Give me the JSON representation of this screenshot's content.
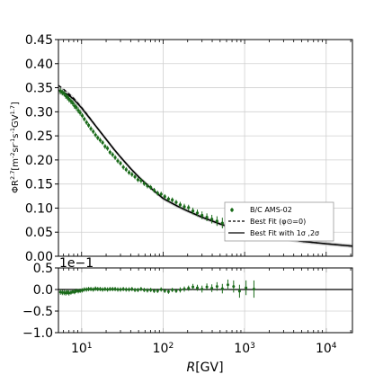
{
  "chart_data": [
    {
      "type": "scatter",
      "panel": "main",
      "ylabel": "ΦR^{2.7}[m^{-2}sr^{-1}s^{-1}GV^{1.7}]",
      "xscale": "log",
      "xlim": [
        5.2,
        21000
      ],
      "ylim": [
        0.0,
        0.45
      ],
      "yticks": [
        "0.00",
        "0.05",
        "0.10",
        "0.15",
        "0.20",
        "0.25",
        "0.30",
        "0.35",
        "0.40",
        "0.45"
      ],
      "grid": true,
      "legend_position": "lower-right",
      "series": [
        {
          "name": "B/C AMS-02",
          "marker": "errorbar",
          "color": "#1a6b1a",
          "x": [
            5.5,
            5.8,
            6.1,
            6.4,
            6.7,
            7.0,
            7.4,
            7.8,
            8.2,
            8.6,
            9.1,
            9.6,
            10.2,
            10.8,
            11.5,
            12.2,
            13.0,
            13.9,
            14.8,
            15.8,
            16.9,
            18.1,
            19.4,
            20.8,
            22.3,
            24.0,
            25.8,
            27.8,
            30.0,
            32.5,
            35.2,
            38.2,
            41.5,
            45.1,
            49.1,
            53.6,
            58.6,
            64.2,
            70.5,
            77.6,
            85.6,
            94.6,
            104.8,
            116.4,
            129.6,
            144.6,
            162.0,
            182.0,
            205.0,
            232.0,
            263.0,
            300.0,
            344.0,
            396.0,
            458.0,
            533.0,
            623.0,
            732.0,
            865.0,
            1040.0,
            1300.0
          ],
          "y": [
            0.343,
            0.34,
            0.338,
            0.333,
            0.33,
            0.326,
            0.322,
            0.318,
            0.312,
            0.309,
            0.303,
            0.298,
            0.292,
            0.285,
            0.278,
            0.272,
            0.265,
            0.259,
            0.252,
            0.246,
            0.241,
            0.236,
            0.228,
            0.224,
            0.216,
            0.211,
            0.205,
            0.198,
            0.193,
            0.185,
            0.18,
            0.174,
            0.17,
            0.165,
            0.159,
            0.157,
            0.151,
            0.146,
            0.143,
            0.137,
            0.131,
            0.129,
            0.124,
            0.119,
            0.117,
            0.112,
            0.107,
            0.103,
            0.101,
            0.094,
            0.09,
            0.085,
            0.081,
            0.077,
            0.073,
            0.069,
            0.066,
            0.062,
            0.059,
            0.056,
            0.052
          ],
          "err": [
            0.006,
            0.006,
            0.006,
            0.006,
            0.006,
            0.006,
            0.006,
            0.006,
            0.006,
            0.006,
            0.006,
            0.006,
            0.005,
            0.005,
            0.005,
            0.005,
            0.005,
            0.005,
            0.005,
            0.005,
            0.005,
            0.005,
            0.005,
            0.005,
            0.005,
            0.005,
            0.005,
            0.005,
            0.005,
            0.005,
            0.005,
            0.005,
            0.005,
            0.005,
            0.005,
            0.005,
            0.005,
            0.005,
            0.005,
            0.005,
            0.005,
            0.005,
            0.005,
            0.005,
            0.005,
            0.005,
            0.006,
            0.006,
            0.006,
            0.007,
            0.007,
            0.008,
            0.008,
            0.009,
            0.01,
            0.011,
            0.012,
            0.014,
            0.015,
            0.017,
            0.02
          ]
        },
        {
          "name": "Best Fit (φ⊙=0)",
          "style": "dashed",
          "color": "#000000",
          "x": [
            5.2,
            6,
            7,
            8,
            10,
            12,
            15,
            20,
            25,
            30,
            40,
            50,
            70,
            100,
            150,
            200,
            300,
            500,
            700,
            1000,
            2000,
            5000,
            10000,
            21000
          ],
          "y": [
            0.355,
            0.347,
            0.337,
            0.328,
            0.309,
            0.292,
            0.27,
            0.243,
            0.222,
            0.206,
            0.182,
            0.165,
            0.142,
            0.12,
            0.104,
            0.094,
            0.081,
            0.067,
            0.059,
            0.051,
            0.041,
            0.031,
            0.026,
            0.021
          ]
        },
        {
          "name": "Best Fit with 1σ ,2σ",
          "style": "solid",
          "color": "#000000",
          "x": [
            5.2,
            6,
            7,
            8,
            10,
            12,
            15,
            20,
            25,
            30,
            40,
            50,
            70,
            100,
            150,
            200,
            300,
            500,
            700,
            1000,
            2000,
            5000,
            10000,
            21000
          ],
          "y": [
            0.345,
            0.341,
            0.334,
            0.326,
            0.308,
            0.291,
            0.27,
            0.243,
            0.222,
            0.206,
            0.182,
            0.165,
            0.142,
            0.12,
            0.104,
            0.094,
            0.081,
            0.067,
            0.059,
            0.051,
            0.041,
            0.031,
            0.026,
            0.021
          ]
        }
      ]
    },
    {
      "type": "scatter",
      "panel": "residual",
      "xlabel": "R[GV]",
      "xscale": "log",
      "xlim": [
        5.2,
        21000
      ],
      "ylim": [
        -1.0,
        0.5
      ],
      "yticks": [
        "0.5",
        "0.0",
        "−0.5",
        "−1.0"
      ],
      "xticks": [
        "10^1",
        "10^2",
        "10^3",
        "10^4"
      ],
      "offset_label": "1e−1",
      "grid": true,
      "series": [
        {
          "name": "",
          "marker": "errorbar",
          "color": "#1a6b1a",
          "x": [
            5.5,
            5.8,
            6.1,
            6.4,
            6.7,
            7.0,
            7.4,
            7.8,
            8.2,
            8.6,
            9.1,
            9.6,
            10.2,
            10.8,
            11.5,
            12.2,
            13.0,
            13.9,
            14.8,
            15.8,
            16.9,
            18.1,
            19.4,
            20.8,
            22.3,
            24.0,
            25.8,
            27.8,
            30.0,
            32.5,
            35.2,
            38.2,
            41.5,
            45.1,
            49.1,
            53.6,
            58.6,
            64.2,
            70.5,
            77.6,
            85.6,
            94.6,
            104.8,
            116.4,
            129.6,
            144.6,
            162.0,
            182.0,
            205.0,
            232.0,
            263.0,
            300.0,
            344.0,
            396.0,
            458.0,
            533.0,
            623.0,
            732.0,
            865.0,
            1040.0,
            1300.0
          ],
          "y": [
            -0.06,
            -0.07,
            -0.07,
            -0.08,
            -0.06,
            -0.08,
            -0.07,
            -0.05,
            -0.06,
            -0.03,
            -0.04,
            -0.03,
            -0.02,
            0.0,
            0.0,
            0.01,
            0.01,
            0.0,
            0.02,
            0.01,
            0.01,
            0.0,
            0.01,
            0.0,
            0.01,
            0.01,
            0.01,
            0.0,
            0.0,
            0.01,
            0.0,
            0.0,
            0.01,
            -0.01,
            -0.01,
            0.01,
            -0.01,
            -0.02,
            -0.01,
            -0.03,
            -0.03,
            0.0,
            -0.03,
            -0.05,
            -0.01,
            -0.03,
            -0.01,
            0.01,
            0.03,
            0.06,
            0.04,
            0.01,
            0.06,
            0.03,
            0.07,
            0.02,
            0.11,
            0.07,
            -0.04,
            0.04,
            0.01
          ],
          "err": [
            0.06,
            0.06,
            0.06,
            0.06,
            0.06,
            0.06,
            0.05,
            0.05,
            0.05,
            0.05,
            0.05,
            0.05,
            0.05,
            0.05,
            0.05,
            0.05,
            0.05,
            0.05,
            0.05,
            0.05,
            0.05,
            0.05,
            0.05,
            0.05,
            0.05,
            0.05,
            0.05,
            0.05,
            0.05,
            0.05,
            0.05,
            0.05,
            0.05,
            0.05,
            0.05,
            0.05,
            0.05,
            0.05,
            0.05,
            0.05,
            0.05,
            0.05,
            0.05,
            0.05,
            0.05,
            0.05,
            0.06,
            0.06,
            0.06,
            0.07,
            0.07,
            0.08,
            0.08,
            0.09,
            0.1,
            0.11,
            0.12,
            0.14,
            0.15,
            0.17,
            0.2
          ]
        }
      ]
    }
  ]
}
